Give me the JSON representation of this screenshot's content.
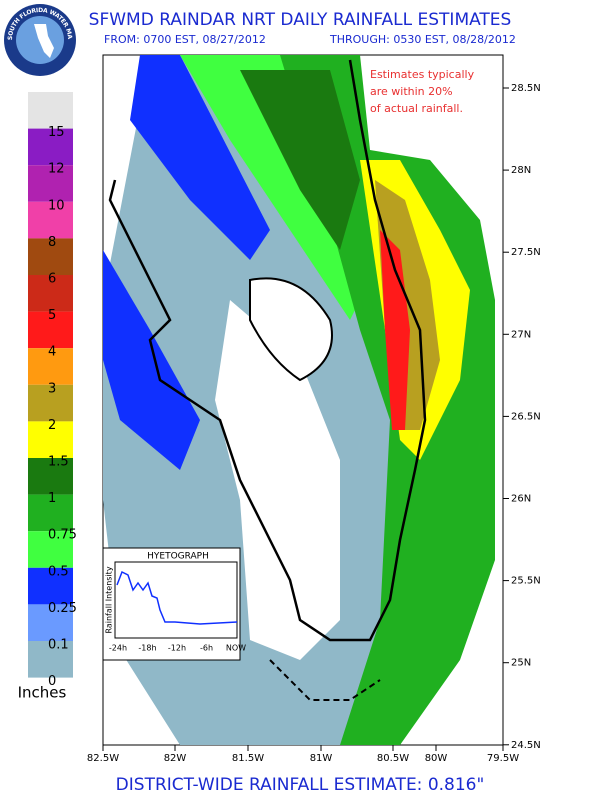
{
  "header": {
    "title": "SFWMD RAINDAR NRT DAILY RAINFALL ESTIMATES",
    "from": "FROM: 0700 EST, 08/27/2012",
    "through": "THROUGH: 0530 EST, 08/28/2012"
  },
  "logo": {
    "text": "SOUTH FLORIDA WATER MANAGEMENT DISTRICT"
  },
  "legend": {
    "labels": [
      "15",
      "12",
      "10",
      "8",
      "6",
      "5",
      "4",
      "3",
      "2",
      "1.5",
      "1",
      "0.75",
      "0.5",
      "0.25",
      "0.1",
      "0"
    ],
    "colors": [
      "#e4e4e4",
      "#8a1cc4",
      "#b022b0",
      "#f040a8",
      "#a04a10",
      "#cc2a18",
      "#ff1a1a",
      "#ff9a10",
      "#b8a020",
      "#ffff00",
      "#1a7a10",
      "#20b020",
      "#40ff40",
      "#1030ff",
      "#6a9aff",
      "#90b8c8"
    ],
    "unit": "Inches"
  },
  "annotation": {
    "lines": [
      "Estimates typically",
      "are within 20%",
      "of actual rainfall."
    ]
  },
  "axes": {
    "lat": [
      "28.5N",
      "28N",
      "27.5N",
      "27N",
      "26.5N",
      "26N",
      "25.5N",
      "25N",
      "24.5N"
    ],
    "lon": [
      "82.5W",
      "82W",
      "81.5W",
      "81W",
      "80.5W",
      "80W",
      "79.5W"
    ]
  },
  "hyetograph": {
    "title": "HYETOGRAPH",
    "ylabel": "Rainfall Intensity",
    "xlabels": [
      "-24h",
      "-18h",
      "-12h",
      "-6h",
      "NOW"
    ]
  },
  "footer": {
    "text": "DISTRICT-WIDE RAINFALL ESTIMATE: 0.816\""
  }
}
